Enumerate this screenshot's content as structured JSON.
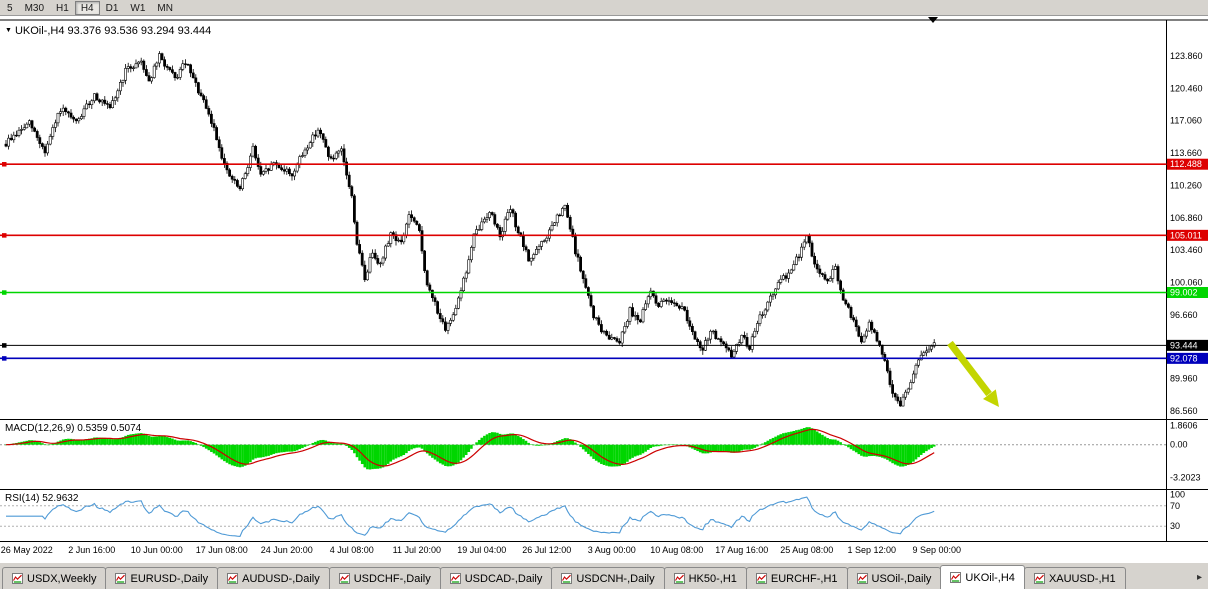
{
  "toolbar": {
    "periods": [
      "5",
      "M30",
      "H1",
      "H4",
      "D1",
      "W1",
      "MN"
    ],
    "active_period": "H4"
  },
  "icons": {
    "symbol_dropdown": "▼",
    "tab_scroll_right": "▸"
  },
  "header": {
    "symbol_ohlc": "UKOil-,H4  93.376 93.536 93.294 93.444"
  },
  "indicators": {
    "macd": {
      "label": "MACD(12,26,9) 0.5359 0.5074",
      "scale_labels": [
        "1.8606",
        "0.00",
        "-3.2023"
      ],
      "scale_values": [
        1.8606,
        0.0,
        -3.2023
      ],
      "histogram_color": "#00d600",
      "signal_color": "#cc0000"
    },
    "rsi": {
      "label": "RSI(14) 52.9632",
      "scale_labels": [
        "100",
        "70",
        "30"
      ],
      "scale_values": [
        100,
        70,
        30
      ],
      "line_color": "#4f9ad6"
    }
  },
  "price_axis": {
    "ticks": [
      "123.860",
      "120.460",
      "117.060",
      "113.660",
      "110.260",
      "106.860",
      "103.460",
      "100.060",
      "96.660",
      "89.960",
      "86.560"
    ]
  },
  "tabs": {
    "active_index": 9,
    "items": [
      {
        "label": "USDX,Weekly"
      },
      {
        "label": "EURUSD-,Daily"
      },
      {
        "label": "AUDUSD-,Daily"
      },
      {
        "label": "USDCHF-,Daily"
      },
      {
        "label": "USDCAD-,Daily"
      },
      {
        "label": "USDCNH-,Daily"
      },
      {
        "label": "HK50-,H1"
      },
      {
        "label": "EURCHF-,H1"
      },
      {
        "label": "USOil-,Daily"
      },
      {
        "label": "UKOil-,H4"
      },
      {
        "label": "XAUUSD-,H1"
      }
    ]
  },
  "chart_data": {
    "type": "candlestick",
    "symbol": "UKOil-",
    "timeframe": "H4",
    "ohlc_current": {
      "open": 93.376,
      "high": 93.536,
      "low": 93.294,
      "close": 93.444
    },
    "y_range": [
      85.65,
      127.65
    ],
    "candle_count": 358,
    "noise_seed": 9,
    "up_color": "#ffffff",
    "down_color": "#000000",
    "outline_color": "#000000",
    "hlines": [
      {
        "price": 112.488,
        "color": "#dd0000",
        "badge": "112.488",
        "width": 1.6
      },
      {
        "price": 105.011,
        "color": "#dd0000",
        "badge": "105.011",
        "width": 1.6
      },
      {
        "price": 99.002,
        "color": "#00d600",
        "badge": "99.002",
        "width": 1.6
      },
      {
        "price": 93.444,
        "color": "#000000",
        "badge": "93.444",
        "width": 1.0
      },
      {
        "price": 92.078,
        "color": "#0000bb",
        "badge": "92.078",
        "width": 1.6
      }
    ],
    "x_labels": [
      "26 May 2022",
      "2 Jun 16:00",
      "10 Jun 00:00",
      "17 Jun 08:00",
      "24 Jun 20:00",
      "4 Jul 08:00",
      "11 Jul 20:00",
      "19 Jul 04:00",
      "26 Jul 12:00",
      "3 Aug 00:00",
      "10 Aug 08:00",
      "17 Aug 16:00",
      "25 Aug 08:00",
      "1 Sep 12:00",
      "9 Sep 00:00"
    ],
    "price_anchors": [
      [
        0,
        114.6
      ],
      [
        1,
        115.0
      ],
      [
        9,
        116.8
      ],
      [
        15,
        113.8
      ],
      [
        21,
        118.3
      ],
      [
        27,
        116.8
      ],
      [
        34,
        119.8
      ],
      [
        40,
        118.2
      ],
      [
        46,
        122.3
      ],
      [
        52,
        123.4
      ],
      [
        55,
        121.2
      ],
      [
        59,
        123.8
      ],
      [
        65,
        121.4
      ],
      [
        69,
        123.2
      ],
      [
        75,
        119.6
      ],
      [
        80,
        116.2
      ],
      [
        85,
        111.6
      ],
      [
        90,
        109.8
      ],
      [
        95,
        114.2
      ],
      [
        98,
        111.2
      ],
      [
        103,
        112.6
      ],
      [
        110,
        111.4
      ],
      [
        115,
        114.0
      ],
      [
        120,
        116.2
      ],
      [
        125,
        112.9
      ],
      [
        129,
        113.8
      ],
      [
        133,
        109.0
      ],
      [
        135,
        104.2
      ],
      [
        138,
        100.4
      ],
      [
        141,
        103.4
      ],
      [
        144,
        101.9
      ],
      [
        148,
        105.3
      ],
      [
        152,
        104.1
      ],
      [
        155,
        107.2
      ],
      [
        159,
        105.4
      ],
      [
        162,
        99.6
      ],
      [
        165,
        97.9
      ],
      [
        169,
        94.8
      ],
      [
        173,
        97.6
      ],
      [
        177,
        101.2
      ],
      [
        180,
        104.9
      ],
      [
        186,
        107.6
      ],
      [
        190,
        105.1
      ],
      [
        194,
        107.8
      ],
      [
        198,
        104.6
      ],
      [
        201,
        102.4
      ],
      [
        207,
        104.4
      ],
      [
        211,
        106.4
      ],
      [
        215,
        108.0
      ],
      [
        219,
        103.4
      ],
      [
        223,
        99.4
      ],
      [
        226,
        96.6
      ],
      [
        230,
        94.6
      ],
      [
        236,
        94.0
      ],
      [
        240,
        97.1
      ],
      [
        244,
        96.1
      ],
      [
        248,
        99.2
      ],
      [
        251,
        97.6
      ],
      [
        255,
        98.4
      ],
      [
        261,
        97.1
      ],
      [
        265,
        93.9
      ],
      [
        268,
        92.9
      ],
      [
        271,
        95.1
      ],
      [
        275,
        93.6
      ],
      [
        279,
        92.4
      ],
      [
        283,
        94.4
      ],
      [
        286,
        93.3
      ],
      [
        290,
        96.4
      ],
      [
        294,
        98.4
      ],
      [
        298,
        100.2
      ],
      [
        302,
        101.4
      ],
      [
        305,
        103.0
      ],
      [
        308,
        104.9
      ],
      [
        311,
        102.1
      ],
      [
        315,
        100.1
      ],
      [
        319,
        101.4
      ],
      [
        322,
        98.1
      ],
      [
        326,
        96.1
      ],
      [
        329,
        93.6
      ],
      [
        332,
        95.7
      ],
      [
        335,
        94.1
      ],
      [
        338,
        91.6
      ],
      [
        341,
        88.6
      ],
      [
        344,
        87.2
      ],
      [
        347,
        89.1
      ],
      [
        350,
        91.1
      ],
      [
        352,
        92.4
      ],
      [
        355,
        93.1
      ],
      [
        357,
        93.444
      ]
    ],
    "annotations": {
      "trend_arrow": {
        "direction": "down-right",
        "color": "#c3d500"
      },
      "end_marker": {
        "shape": "triangle-down",
        "color": "#000000"
      }
    }
  }
}
